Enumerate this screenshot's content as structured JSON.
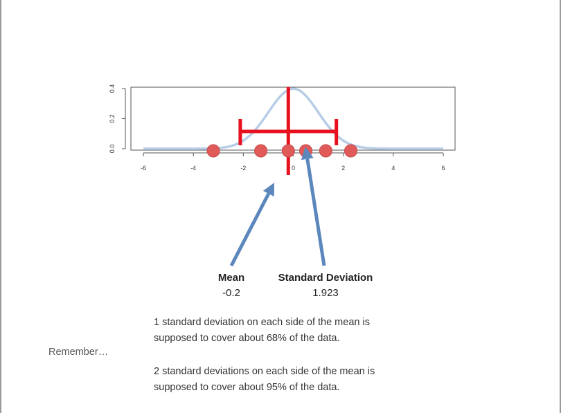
{
  "chart_data": {
    "type": "line",
    "xlim": [
      -6,
      6
    ],
    "ylim": [
      0,
      0.4
    ],
    "x_ticks": [
      -6,
      -4,
      -2,
      0,
      2,
      4,
      6
    ],
    "y_ticks": [
      0.0,
      0.2,
      0.4
    ],
    "y_tick_labels": [
      "0.0",
      "0.2",
      "0.4"
    ],
    "curve": {
      "mean": 0,
      "sd": 1,
      "color": "#b7cde6"
    },
    "points": [
      -3.2,
      -1.3,
      -0.2,
      0.5,
      1.3,
      2.3
    ],
    "point_color": "#e05a5a",
    "mean_value": -0.2,
    "sd_value": 1.923,
    "bar_color": "#e8101f",
    "arrow_color": "#5b87bd",
    "grid": false
  },
  "annotations": {
    "mean_label": "Mean",
    "mean_value": "-0.2",
    "sd_label": "Standard Deviation",
    "sd_value": "1.923"
  },
  "text": {
    "remember": "Remember…",
    "rule1_line1": "1 standard deviation on each side of the mean is",
    "rule1_line2": "supposed to cover about 68% of the data.",
    "rule2_line1": "2 standard deviations on each side of the mean is",
    "rule2_line2": "supposed to cover about 95% of the data."
  }
}
